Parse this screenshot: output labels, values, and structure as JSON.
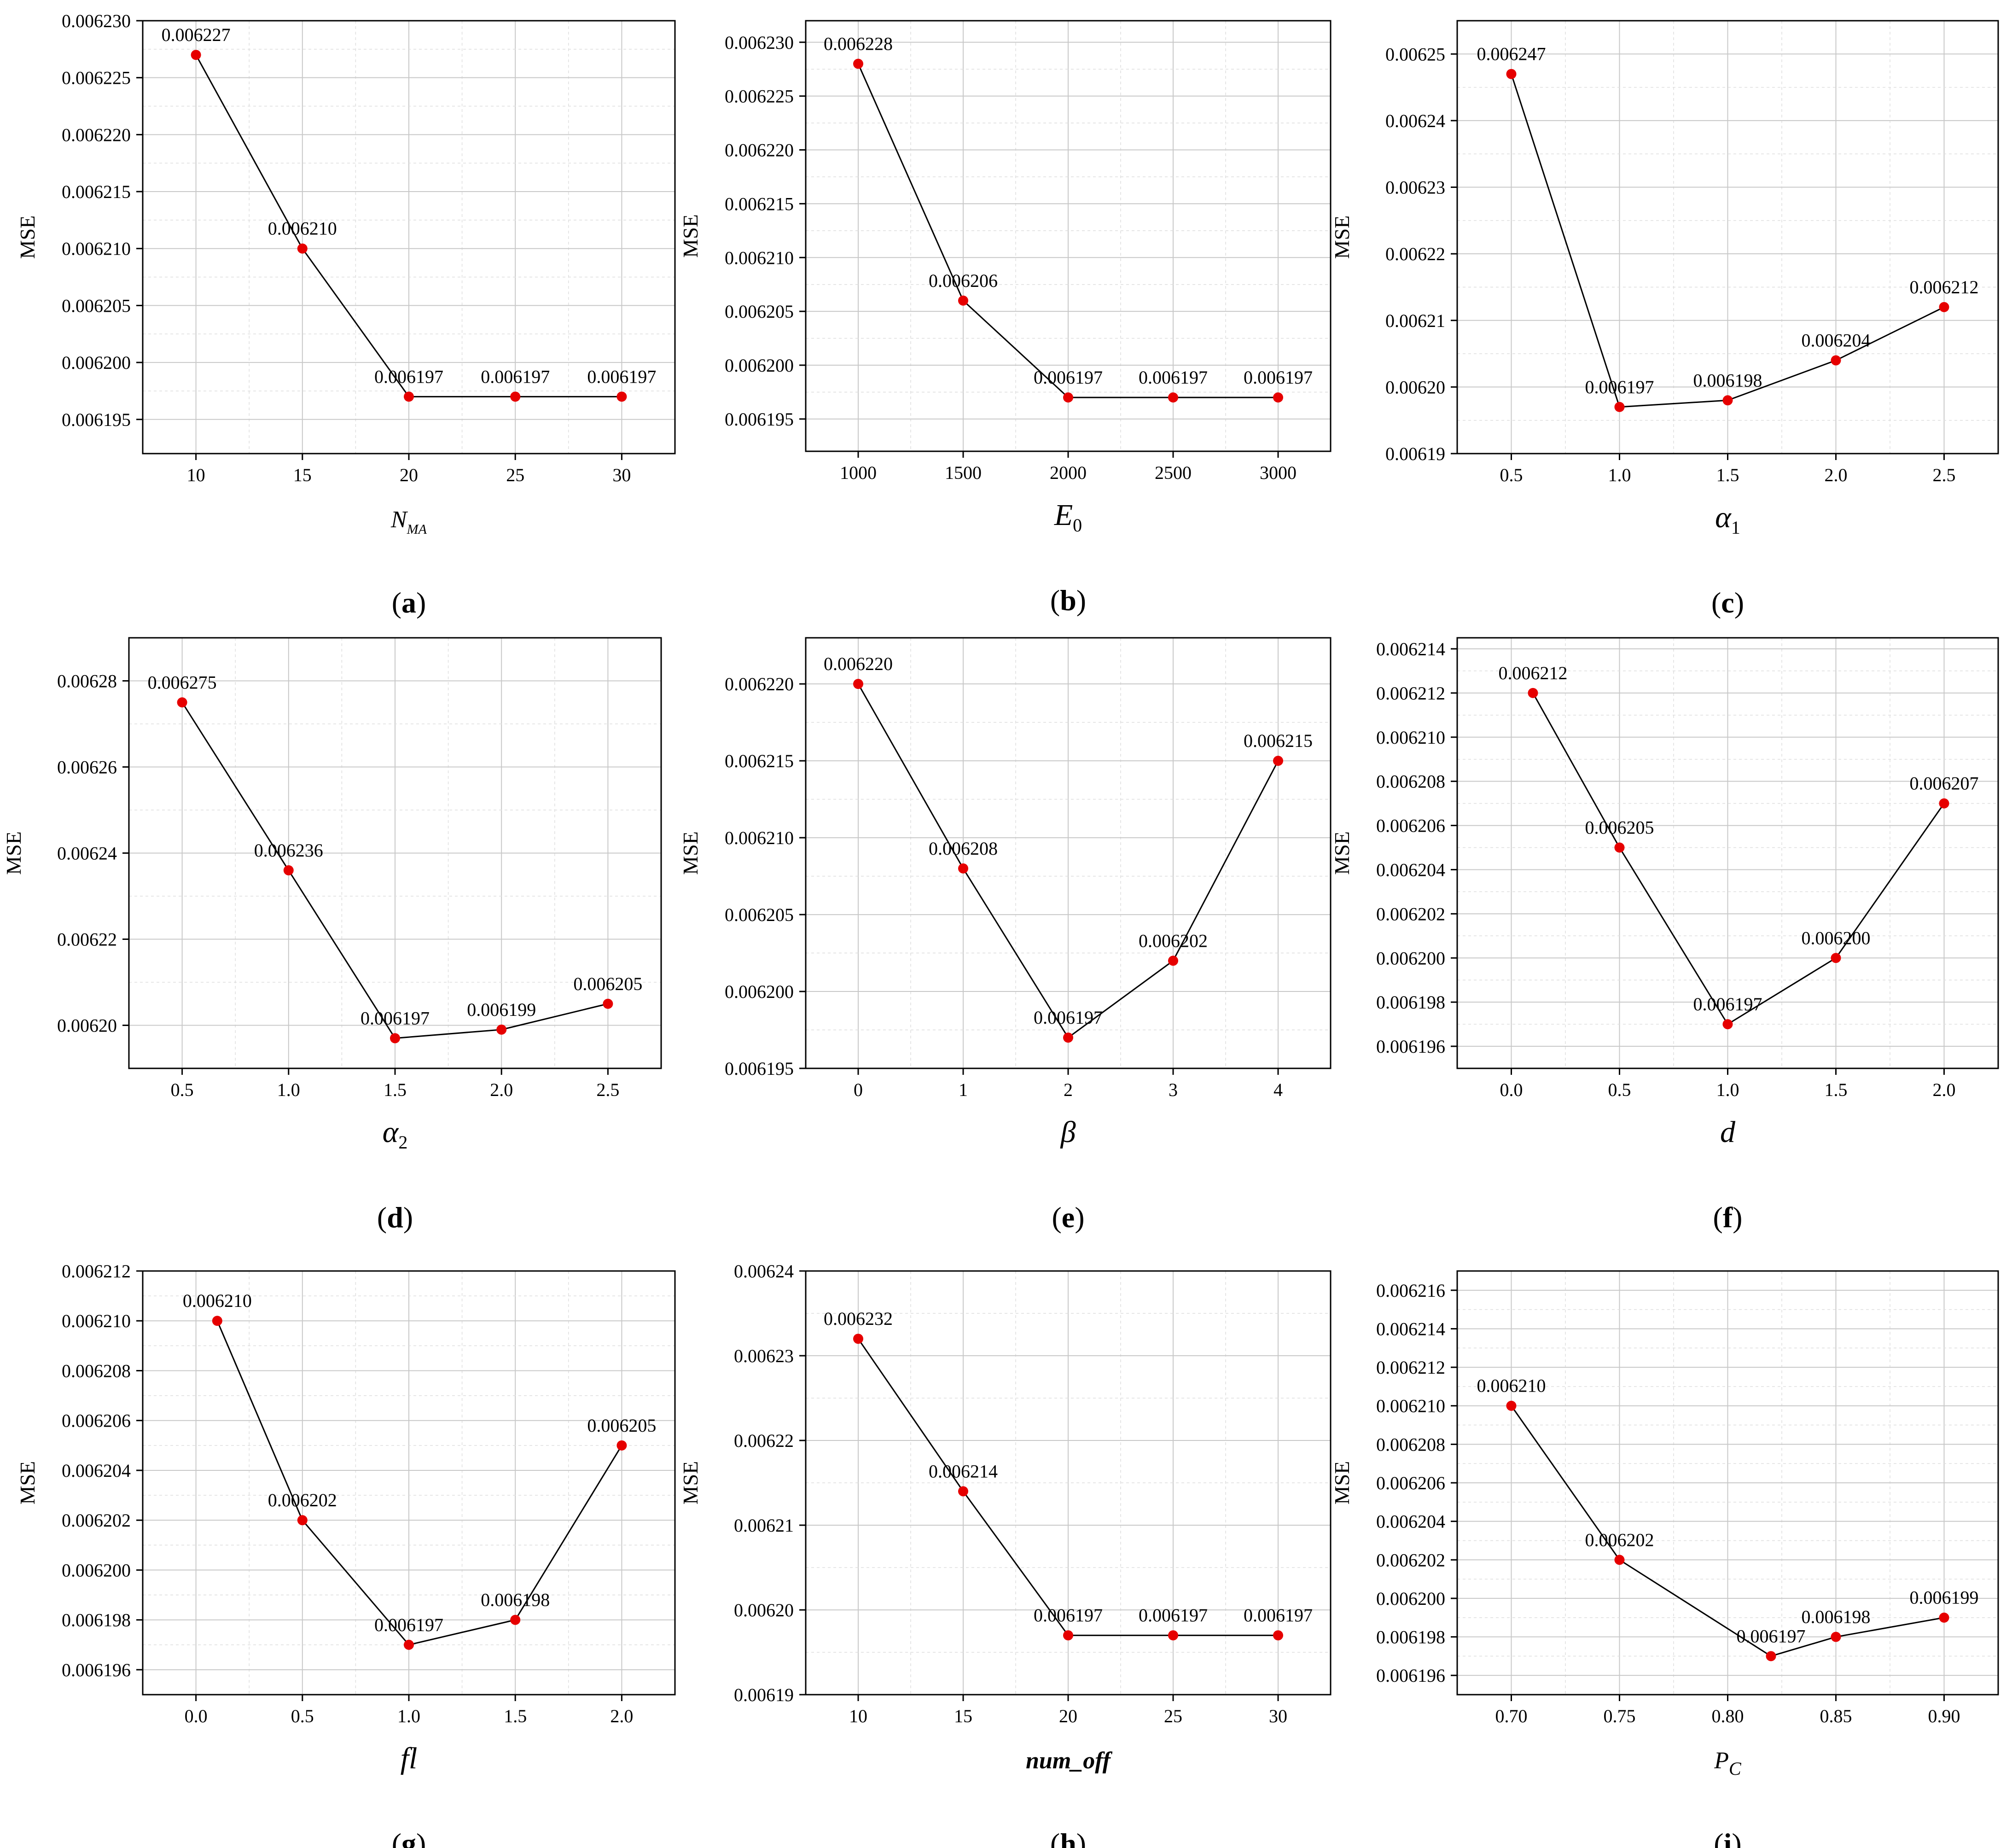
{
  "chart_data": [
    {
      "id": "a",
      "type": "line",
      "panel_label": "a",
      "xlabel_main": "N",
      "xlabel_sub": "MA",
      "ylabel": "MSE",
      "x": [
        10,
        15,
        20,
        25,
        30
      ],
      "y": [
        0.006227,
        0.00621,
        0.006197,
        0.006197,
        0.006197
      ],
      "labels": [
        "0.006227",
        "0.006210",
        "0.006197",
        "0.006197",
        "0.006197"
      ],
      "xlim": [
        7.5,
        32.5
      ],
      "ylim": [
        0.006192,
        0.00623
      ],
      "xticks": [
        10,
        15,
        20,
        25,
        30
      ],
      "xtick_labels": [
        "10",
        "15",
        "20",
        "25",
        "30"
      ],
      "yticks": [
        0.006195,
        0.0062,
        0.006205,
        0.00621,
        0.006215,
        0.00622,
        0.006225,
        0.00623
      ],
      "ytick_labels": [
        "0.006195",
        "0.006200",
        "0.006205",
        "0.006210",
        "0.006215",
        "0.006220",
        "0.006225",
        "0.006230"
      ],
      "grid": true
    },
    {
      "id": "b",
      "type": "line",
      "panel_label": "b",
      "xlabel_main": "E",
      "xlabel_sub": "0",
      "ylabel": "MSE",
      "x": [
        1000,
        1500,
        2000,
        2500,
        3000
      ],
      "y": [
        0.006228,
        0.006206,
        0.006197,
        0.006197,
        0.006197
      ],
      "labels": [
        "0.006228",
        "0.006206",
        "0.006197",
        "0.006197",
        "0.006197"
      ],
      "xlim": [
        750,
        3250
      ],
      "ylim": [
        0.006192,
        0.006232
      ],
      "xticks": [
        1000,
        1500,
        2000,
        2500,
        3000
      ],
      "xtick_labels": [
        "1000",
        "1500",
        "2000",
        "2500",
        "3000"
      ],
      "yticks": [
        0.006195,
        0.0062,
        0.006205,
        0.00621,
        0.006215,
        0.00622,
        0.006225,
        0.00623
      ],
      "ytick_labels": [
        "0.006195",
        "0.006200",
        "0.006205",
        "0.006210",
        "0.006215",
        "0.006220",
        "0.006225",
        "0.006230"
      ],
      "grid": true
    },
    {
      "id": "c",
      "type": "line",
      "panel_label": "c",
      "xlabel_main": "α",
      "xlabel_sub": "1",
      "ylabel": "MSE",
      "x": [
        0.5,
        1.0,
        1.5,
        2.0,
        2.5
      ],
      "y": [
        0.006247,
        0.006197,
        0.006198,
        0.006204,
        0.006212
      ],
      "labels": [
        "0.006247",
        "0.006197",
        "0.006198",
        "0.006204",
        "0.006212"
      ],
      "xlim": [
        0.25,
        2.75
      ],
      "ylim": [
        0.00619,
        0.006255
      ],
      "xticks": [
        0.5,
        1.0,
        1.5,
        2.0,
        2.5
      ],
      "xtick_labels": [
        "0.5",
        "1.0",
        "1.5",
        "2.0",
        "2.5"
      ],
      "yticks": [
        0.00619,
        0.0062,
        0.00621,
        0.00622,
        0.00623,
        0.00624,
        0.00625
      ],
      "ytick_labels": [
        "0.00619",
        "0.00620",
        "0.00621",
        "0.00622",
        "0.00623",
        "0.00624",
        "0.00625"
      ],
      "grid": true
    },
    {
      "id": "d",
      "type": "line",
      "panel_label": "d",
      "xlabel_main": "α",
      "xlabel_sub": "2",
      "ylabel": "MSE",
      "x": [
        0.5,
        1.0,
        1.5,
        2.0,
        2.5
      ],
      "y": [
        0.006275,
        0.006236,
        0.006197,
        0.006199,
        0.006205
      ],
      "labels": [
        "0.006275",
        "0.006236",
        "0.006197",
        "0.006199",
        "0.006205"
      ],
      "xlim": [
        0.25,
        2.75
      ],
      "ylim": [
        0.00619,
        0.00629
      ],
      "xticks": [
        0.5,
        1.0,
        1.5,
        2.0,
        2.5
      ],
      "xtick_labels": [
        "0.5",
        "1.0",
        "1.5",
        "2.0",
        "2.5"
      ],
      "yticks": [
        0.0062,
        0.00622,
        0.00624,
        0.00626,
        0.00628
      ],
      "ytick_labels": [
        "0.00620",
        "0.00622",
        "0.00624",
        "0.00626",
        "0.00628"
      ],
      "grid": true
    },
    {
      "id": "e",
      "type": "line",
      "panel_label": "e",
      "xlabel_main": "β",
      "xlabel_sub": "",
      "ylabel": "MSE",
      "x": [
        0,
        1,
        2,
        3,
        4
      ],
      "y": [
        0.00622,
        0.006208,
        0.006197,
        0.006202,
        0.006215
      ],
      "labels": [
        "0.006220",
        "0.006208",
        "0.006197",
        "0.006202",
        "0.006215"
      ],
      "xlim": [
        -0.5,
        4.5
      ],
      "ylim": [
        0.006195,
        0.006223
      ],
      "xticks": [
        0,
        1,
        2,
        3,
        4
      ],
      "xtick_labels": [
        "0",
        "1",
        "2",
        "3",
        "4"
      ],
      "yticks": [
        0.006195,
        0.0062,
        0.006205,
        0.00621,
        0.006215,
        0.00622
      ],
      "ytick_labels": [
        "0.006195",
        "0.006200",
        "0.006205",
        "0.006210",
        "0.006215",
        "0.006220"
      ],
      "grid": true
    },
    {
      "id": "f",
      "type": "line",
      "panel_label": "f",
      "xlabel_main": "d",
      "xlabel_sub": "",
      "ylabel": "MSE",
      "x": [
        0.1,
        0.5,
        1.0,
        1.5,
        2.0
      ],
      "y": [
        0.006212,
        0.006205,
        0.006197,
        0.0062,
        0.006207
      ],
      "labels": [
        "0.006212",
        "0.006205",
        "0.006197",
        "0.006200",
        "0.006207"
      ],
      "xlim": [
        -0.25,
        2.25
      ],
      "ylim": [
        0.006195,
        0.0062145
      ],
      "xticks": [
        0.0,
        0.5,
        1.0,
        1.5,
        2.0
      ],
      "xtick_labels": [
        "0.0",
        "0.5",
        "1.0",
        "1.5",
        "2.0"
      ],
      "yticks": [
        0.006196,
        0.006198,
        0.0062,
        0.006202,
        0.006204,
        0.006206,
        0.006208,
        0.00621,
        0.006212,
        0.006214
      ],
      "ytick_labels": [
        "0.006196",
        "0.006198",
        "0.006200",
        "0.006202",
        "0.006204",
        "0.006206",
        "0.006208",
        "0.006210",
        "0.006212",
        "0.006214"
      ],
      "grid": true
    },
    {
      "id": "g",
      "type": "line",
      "panel_label": "g",
      "xlabel_main": "fl",
      "xlabel_sub": "",
      "ylabel": "MSE",
      "x": [
        0.1,
        0.5,
        1.0,
        1.5,
        2.0
      ],
      "y": [
        0.00621,
        0.006202,
        0.006197,
        0.006198,
        0.006205
      ],
      "labels": [
        "0.006210",
        "0.006202",
        "0.006197",
        "0.006198",
        "0.006205"
      ],
      "xlim": [
        -0.25,
        2.25
      ],
      "ylim": [
        0.006195,
        0.006212
      ],
      "xticks": [
        0.0,
        0.5,
        1.0,
        1.5,
        2.0
      ],
      "xtick_labels": [
        "0.0",
        "0.5",
        "1.0",
        "1.5",
        "2.0"
      ],
      "yticks": [
        0.006196,
        0.006198,
        0.0062,
        0.006202,
        0.006204,
        0.006206,
        0.006208,
        0.00621,
        0.006212
      ],
      "ytick_labels": [
        "0.006196",
        "0.006198",
        "0.006200",
        "0.006202",
        "0.006204",
        "0.006206",
        "0.006208",
        "0.006210",
        "0.006212"
      ],
      "grid": true
    },
    {
      "id": "h",
      "type": "line",
      "panel_label": "h",
      "xlabel_main": "num_off",
      "xlabel_sub": "",
      "ylabel": "MSE",
      "x": [
        10,
        15,
        20,
        25,
        30
      ],
      "y": [
        0.006232,
        0.006214,
        0.006197,
        0.006197,
        0.006197
      ],
      "labels": [
        "0.006232",
        "0.006214",
        "0.006197",
        "0.006197",
        "0.006197"
      ],
      "xlim": [
        7.5,
        32.5
      ],
      "ylim": [
        0.00619,
        0.00624
      ],
      "xticks": [
        10,
        15,
        20,
        25,
        30
      ],
      "xtick_labels": [
        "10",
        "15",
        "20",
        "25",
        "30"
      ],
      "yticks": [
        0.00619,
        0.0062,
        0.00621,
        0.00622,
        0.00623,
        0.00624
      ],
      "ytick_labels": [
        "0.00619",
        "0.00620",
        "0.00621",
        "0.00622",
        "0.00623",
        "0.00624"
      ],
      "grid": true
    },
    {
      "id": "i",
      "type": "line",
      "panel_label": "i",
      "xlabel_main": "P",
      "xlabel_sub": "C",
      "ylabel": "MSE",
      "x": [
        0.7,
        0.75,
        0.82,
        0.85,
        0.9
      ],
      "y": [
        0.00621,
        0.006202,
        0.006197,
        0.006198,
        0.006199
      ],
      "labels": [
        "0.006210",
        "0.006202",
        "0.006197",
        "0.006198",
        "0.006199"
      ],
      "xlim": [
        0.675,
        0.925
      ],
      "ylim": [
        0.006195,
        0.006217
      ],
      "xticks": [
        0.7,
        0.75,
        0.8,
        0.85,
        0.9
      ],
      "xtick_labels": [
        "0.70",
        "0.75",
        "0.80",
        "0.85",
        "0.90"
      ],
      "yticks": [
        0.006196,
        0.006198,
        0.0062,
        0.006202,
        0.006204,
        0.006206,
        0.006208,
        0.00621,
        0.006212,
        0.006214,
        0.006216
      ],
      "ytick_labels": [
        "0.006196",
        "0.006198",
        "0.006200",
        "0.006202",
        "0.006204",
        "0.006206",
        "0.006208",
        "0.006210",
        "0.006212",
        "0.006214",
        "0.006216"
      ],
      "grid": true
    }
  ],
  "colors": {
    "marker": "#e60000",
    "line": "#000000",
    "grid": "#c8c8c8"
  }
}
